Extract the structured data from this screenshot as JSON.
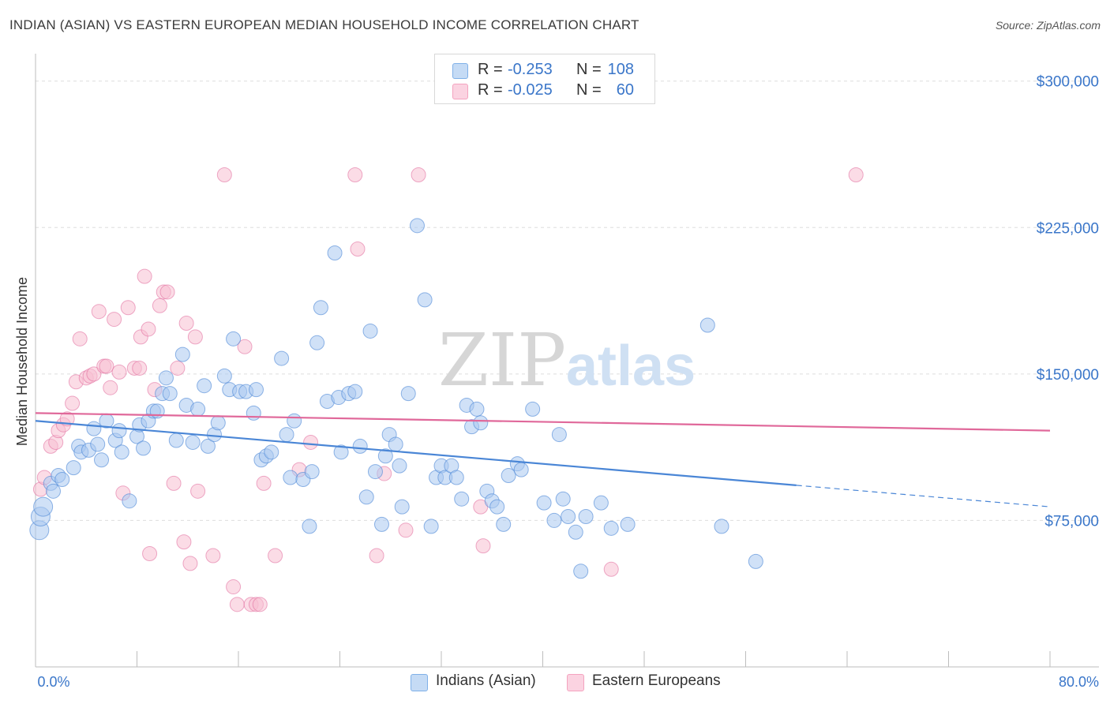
{
  "header": {
    "title": "INDIAN (ASIAN) VS EASTERN EUROPEAN MEDIAN HOUSEHOLD INCOME CORRELATION CHART",
    "source": "Source: ZipAtlas.com"
  },
  "legend": {
    "rows": [
      {
        "r_label": "R =",
        "r_value": "-0.253",
        "n_label": "N =",
        "n_value": "108",
        "color": "#7fb0e8"
      },
      {
        "r_label": "R =",
        "r_value": "-0.025",
        "n_label": "N =",
        "n_value": "60",
        "color": "#f4a3bf"
      }
    ]
  },
  "bottom_legend": [
    {
      "label": "Indians (Asian)",
      "color": "#7fb0e8"
    },
    {
      "label": "Eastern Europeans",
      "color": "#f4a3bf"
    }
  ],
  "watermark": {
    "zip": "ZIP",
    "atlas": "atlas"
  },
  "chart_data": {
    "type": "scatter",
    "ylabel": "Median Household Income",
    "xlim": [
      0,
      80
    ],
    "ylim": [
      0,
      310000
    ],
    "x_tick_labels": [
      "0.0%",
      "80.0%"
    ],
    "y_ticks": [
      75000,
      150000,
      225000,
      300000
    ],
    "y_tick_labels": [
      "$75,000",
      "$150,000",
      "$225,000",
      "$300,000"
    ],
    "grid": true,
    "colors": {
      "blue": "#4a86d6",
      "blue_fill": "#a9c9f0",
      "pink": "#e0689a",
      "pink_fill": "#f7bfd2",
      "axis_text": "#3a76c9"
    },
    "series": [
      {
        "name": "Indians (Asian)",
        "trend": {
          "x0": 0,
          "y0": 126000,
          "x1": 60,
          "y1": 93000,
          "dash_to_x": 80,
          "dash_to_y": 82000
        },
        "points": [
          [
            0.3,
            70000
          ],
          [
            0.4,
            77000
          ],
          [
            0.6,
            82000
          ],
          [
            1.2,
            94000
          ],
          [
            1.4,
            90000
          ],
          [
            1.8,
            98000
          ],
          [
            2.1,
            96000
          ],
          [
            3.0,
            102000
          ],
          [
            3.4,
            113000
          ],
          [
            3.6,
            110000
          ],
          [
            4.2,
            111000
          ],
          [
            4.6,
            122000
          ],
          [
            4.9,
            114000
          ],
          [
            5.2,
            106000
          ],
          [
            5.6,
            126000
          ],
          [
            6.3,
            116000
          ],
          [
            6.6,
            121000
          ],
          [
            6.8,
            110000
          ],
          [
            7.4,
            85000
          ],
          [
            8.0,
            118000
          ],
          [
            8.2,
            124000
          ],
          [
            8.5,
            112000
          ],
          [
            8.9,
            126000
          ],
          [
            9.3,
            131000
          ],
          [
            9.6,
            131000
          ],
          [
            10.0,
            140000
          ],
          [
            10.3,
            148000
          ],
          [
            10.6,
            140000
          ],
          [
            11.1,
            116000
          ],
          [
            11.6,
            160000
          ],
          [
            11.9,
            134000
          ],
          [
            12.4,
            115000
          ],
          [
            12.8,
            132000
          ],
          [
            13.3,
            144000
          ],
          [
            13.6,
            113000
          ],
          [
            14.1,
            119000
          ],
          [
            14.4,
            125000
          ],
          [
            14.9,
            149000
          ],
          [
            15.3,
            142000
          ],
          [
            15.6,
            168000
          ],
          [
            16.1,
            141000
          ],
          [
            16.6,
            141000
          ],
          [
            17.2,
            130000
          ],
          [
            17.4,
            142000
          ],
          [
            17.8,
            106000
          ],
          [
            18.2,
            108000
          ],
          [
            18.6,
            110000
          ],
          [
            19.4,
            158000
          ],
          [
            19.8,
            119000
          ],
          [
            20.1,
            97000
          ],
          [
            20.4,
            126000
          ],
          [
            21.1,
            96000
          ],
          [
            21.6,
            72000
          ],
          [
            21.8,
            100000
          ],
          [
            22.2,
            166000
          ],
          [
            22.5,
            184000
          ],
          [
            23.0,
            136000
          ],
          [
            23.6,
            212000
          ],
          [
            23.9,
            138000
          ],
          [
            24.1,
            110000
          ],
          [
            24.7,
            140000
          ],
          [
            25.2,
            141000
          ],
          [
            25.6,
            113000
          ],
          [
            26.1,
            87000
          ],
          [
            26.4,
            172000
          ],
          [
            26.8,
            100000
          ],
          [
            27.3,
            73000
          ],
          [
            27.6,
            108000
          ],
          [
            27.9,
            119000
          ],
          [
            28.4,
            114000
          ],
          [
            28.7,
            103000
          ],
          [
            28.9,
            82000
          ],
          [
            29.4,
            140000
          ],
          [
            30.1,
            226000
          ],
          [
            30.7,
            188000
          ],
          [
            31.2,
            72000
          ],
          [
            31.6,
            97000
          ],
          [
            32.0,
            103000
          ],
          [
            32.3,
            97000
          ],
          [
            32.8,
            103000
          ],
          [
            33.2,
            97000
          ],
          [
            33.6,
            86000
          ],
          [
            34.0,
            134000
          ],
          [
            34.4,
            123000
          ],
          [
            34.8,
            132000
          ],
          [
            35.1,
            125000
          ],
          [
            35.6,
            90000
          ],
          [
            36.0,
            85000
          ],
          [
            36.4,
            82000
          ],
          [
            36.9,
            73000
          ],
          [
            37.3,
            98000
          ],
          [
            38.0,
            104000
          ],
          [
            38.3,
            101000
          ],
          [
            39.2,
            132000
          ],
          [
            40.1,
            84000
          ],
          [
            40.9,
            75000
          ],
          [
            41.3,
            119000
          ],
          [
            41.6,
            86000
          ],
          [
            42.0,
            77000
          ],
          [
            42.6,
            69000
          ],
          [
            43.0,
            49000
          ],
          [
            43.4,
            77000
          ],
          [
            44.6,
            84000
          ],
          [
            45.4,
            71000
          ],
          [
            46.7,
            73000
          ],
          [
            53.0,
            175000
          ],
          [
            54.1,
            72000
          ],
          [
            56.8,
            54000
          ]
        ]
      },
      {
        "name": "Eastern Europeans",
        "trend": {
          "x0": 0,
          "y0": 130000,
          "x1": 80,
          "y1": 121000
        },
        "points": [
          [
            0.4,
            91000
          ],
          [
            0.7,
            97000
          ],
          [
            1.2,
            113000
          ],
          [
            1.6,
            115000
          ],
          [
            1.8,
            121000
          ],
          [
            2.2,
            124000
          ],
          [
            2.5,
            127000
          ],
          [
            2.9,
            135000
          ],
          [
            3.2,
            146000
          ],
          [
            3.5,
            168000
          ],
          [
            4.0,
            148000
          ],
          [
            4.3,
            149000
          ],
          [
            4.6,
            150000
          ],
          [
            5.0,
            182000
          ],
          [
            5.4,
            154000
          ],
          [
            5.6,
            154000
          ],
          [
            5.9,
            143000
          ],
          [
            6.2,
            178000
          ],
          [
            6.6,
            151000
          ],
          [
            6.9,
            89000
          ],
          [
            7.3,
            184000
          ],
          [
            7.8,
            153000
          ],
          [
            8.2,
            153000
          ],
          [
            8.3,
            169000
          ],
          [
            8.6,
            200000
          ],
          [
            8.9,
            173000
          ],
          [
            9.0,
            58000
          ],
          [
            9.4,
            142000
          ],
          [
            9.8,
            185000
          ],
          [
            10.1,
            192000
          ],
          [
            10.4,
            192000
          ],
          [
            10.9,
            94000
          ],
          [
            11.2,
            153000
          ],
          [
            11.7,
            64000
          ],
          [
            11.9,
            176000
          ],
          [
            12.2,
            53000
          ],
          [
            12.6,
            169000
          ],
          [
            12.8,
            90000
          ],
          [
            14.0,
            57000
          ],
          [
            14.9,
            252000
          ],
          [
            15.6,
            41000
          ],
          [
            15.9,
            32000
          ],
          [
            16.5,
            164000
          ],
          [
            17.0,
            32000
          ],
          [
            17.4,
            32000
          ],
          [
            17.7,
            32000
          ],
          [
            18.0,
            94000
          ],
          [
            18.9,
            57000
          ],
          [
            20.8,
            101000
          ],
          [
            21.7,
            115000
          ],
          [
            25.2,
            252000
          ],
          [
            25.4,
            214000
          ],
          [
            26.9,
            57000
          ],
          [
            27.5,
            99000
          ],
          [
            29.2,
            70000
          ],
          [
            30.2,
            252000
          ],
          [
            35.1,
            82000
          ],
          [
            35.3,
            62000
          ],
          [
            45.4,
            50000
          ],
          [
            64.7,
            252000
          ]
        ]
      }
    ]
  }
}
